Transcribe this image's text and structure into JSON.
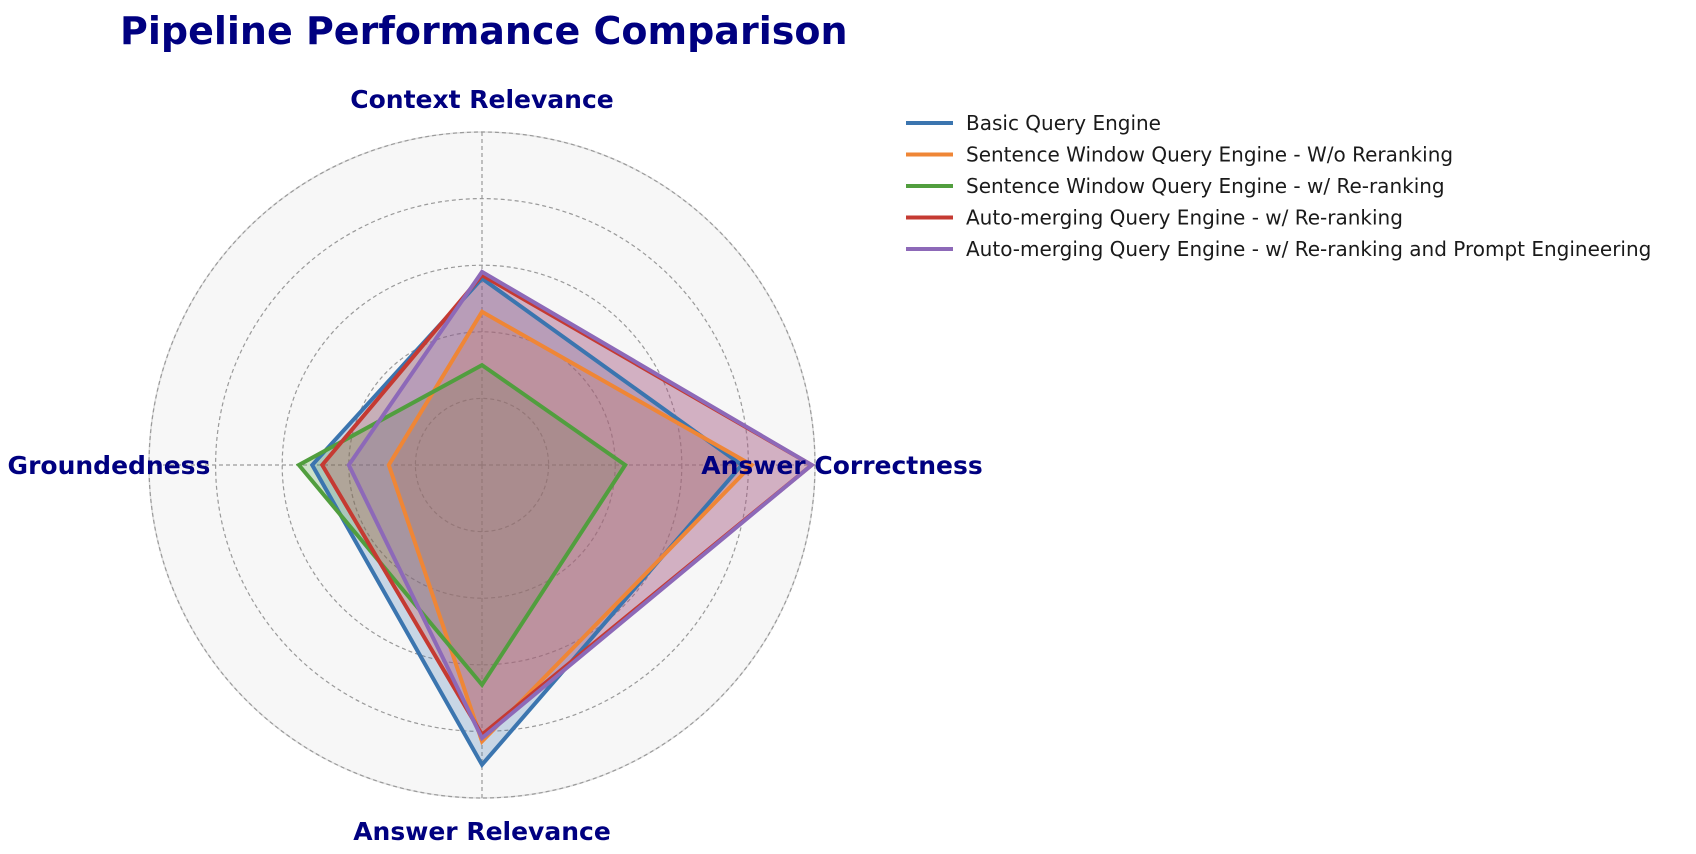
{
  "chart_data": {
    "type": "radar",
    "title": "Pipeline Performance Comparison",
    "axes": [
      "Context Relevance",
      "Answer Correctness",
      "Answer Relevance",
      "Groundedness"
    ],
    "rlim": [
      0,
      1
    ],
    "grid": true,
    "legend_position": "upper-right",
    "series": [
      {
        "name": "Basic Query Engine",
        "color": "#3b75af",
        "values": [
          0.56,
          0.78,
          0.9,
          0.51
        ]
      },
      {
        "name": "Sentence Window Query Engine - W/o Reranking",
        "color": "#ef8636",
        "values": [
          0.46,
          0.81,
          0.83,
          0.28
        ]
      },
      {
        "name": "Sentence Window Query Engine - w/ Re-ranking",
        "color": "#519e3e",
        "values": [
          0.3,
          0.43,
          0.66,
          0.55
        ]
      },
      {
        "name": "Auto-merging Query Engine - w/ Re-ranking",
        "color": "#c53a32",
        "values": [
          0.57,
          0.99,
          0.81,
          0.48
        ]
      },
      {
        "name": "Auto-merging Query Engine - w/ Re-ranking and Prompt Engineering",
        "color": "#8d69b8",
        "values": [
          0.58,
          0.99,
          0.82,
          0.4
        ]
      }
    ]
  }
}
